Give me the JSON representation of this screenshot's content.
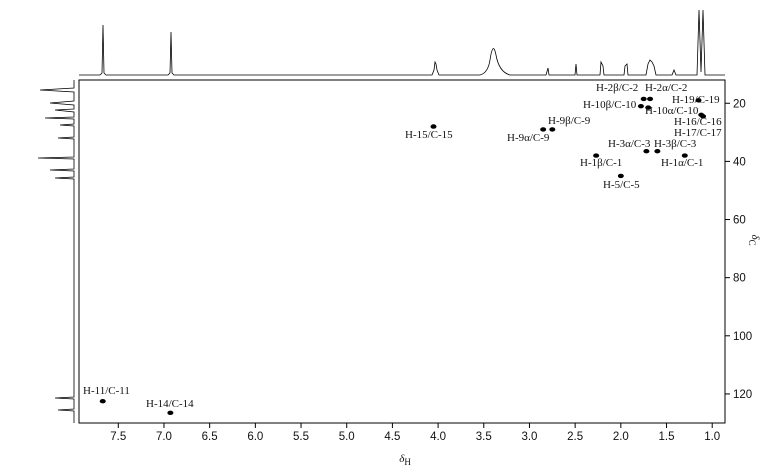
{
  "chart_data": {
    "type": "scatter",
    "x_label": {
      "symbol": "δ",
      "sub": "H"
    },
    "y_label": {
      "symbol": "δ",
      "sub": "C"
    },
    "xlim": [
      7.93,
      0.86
    ],
    "ylim": [
      12,
      130
    ],
    "xticks": [
      7.5,
      {
        "value": 7,
        "label": "7.0"
      },
      6.5,
      {
        "value": 6,
        "label": "6.0"
      },
      5.5,
      {
        "value": 5,
        "label": "5.0"
      },
      4.5,
      {
        "value": 4,
        "label": "4.0"
      },
      3.5,
      {
        "value": 3,
        "label": "3.0"
      },
      2.5,
      {
        "value": 2,
        "label": "2.0"
      },
      1.5,
      {
        "value": 1,
        "label": "1.0"
      }
    ],
    "yticks": [
      20,
      40,
      60,
      80,
      100,
      120
    ],
    "color": "#000000",
    "points": [
      {
        "label": "H-2β/C-2",
        "x": 1.75,
        "y": 18.5
      },
      {
        "label": "H-2α/C-2",
        "x": 1.68,
        "y": 18.5
      },
      {
        "label": "H-19/C-19",
        "x": 1.15,
        "y": 19
      },
      {
        "label": "H-10β/C-10",
        "x": 1.78,
        "y": 21
      },
      {
        "label": "H-10α/C-10",
        "x": 1.7,
        "y": 21.5
      },
      {
        "label": "H-16/C-16",
        "x": 1.12,
        "y": 24
      },
      {
        "label": "H-17/C-17",
        "x": 1.1,
        "y": 24.5
      },
      {
        "label": "H-9β/C-9",
        "x": 2.75,
        "y": 29
      },
      {
        "label": "H-9α/C-9",
        "x": 2.85,
        "y": 29
      },
      {
        "label": "H-15/C-15",
        "x": 4.05,
        "y": 28
      },
      {
        "label": "H-3α/C-3",
        "x": 1.72,
        "y": 36.5
      },
      {
        "label": "H-3β/C-3",
        "x": 1.6,
        "y": 36.5
      },
      {
        "label": "H-1β/C-1",
        "x": 2.27,
        "y": 38
      },
      {
        "label": "H-1α/C-1",
        "x": 1.3,
        "y": 38
      },
      {
        "label": "H-5/C-5",
        "x": 2.0,
        "y": 45
      },
      {
        "label": "H-11/C-11",
        "x": 7.67,
        "y": 122.5
      },
      {
        "label": "H-14/C-14",
        "x": 6.93,
        "y": 126.5
      }
    ]
  }
}
